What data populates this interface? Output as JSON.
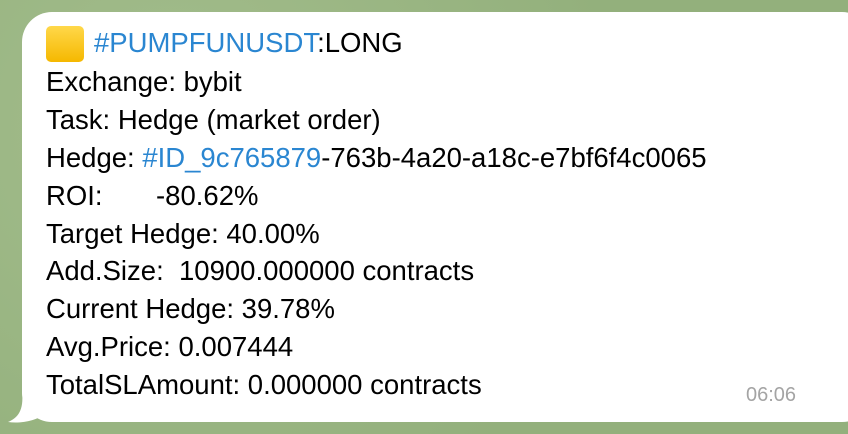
{
  "message": {
    "lines": [
      [
        {
          "text": "#PUMPFUNUSDT",
          "link": true
        },
        {
          "text": ":LONG"
        }
      ],
      [
        {
          "text": "Exchange: bybit"
        }
      ],
      [
        {
          "text": "Task: Hedge (market order)"
        }
      ],
      [
        {
          "text": "Hedge: "
        },
        {
          "text": "#ID_9c765879",
          "link": true
        },
        {
          "text": "-763b-4a20-a18c-e7bf6f4c0065"
        }
      ],
      [
        {
          "text": "ROI:       -80.62%"
        }
      ],
      [
        {
          "text": "Target Hedge: 40.00%"
        }
      ],
      [
        {
          "text": "Add.Size:  10900.000000 contracts"
        }
      ],
      [
        {
          "text": "Current Hedge: 39.78%"
        }
      ],
      [
        {
          "text": "Avg.Price: 0.007444"
        }
      ],
      [
        {
          "text": "TotalSLAmount: 0.000000 contracts"
        }
      ]
    ],
    "time": "06:06"
  }
}
